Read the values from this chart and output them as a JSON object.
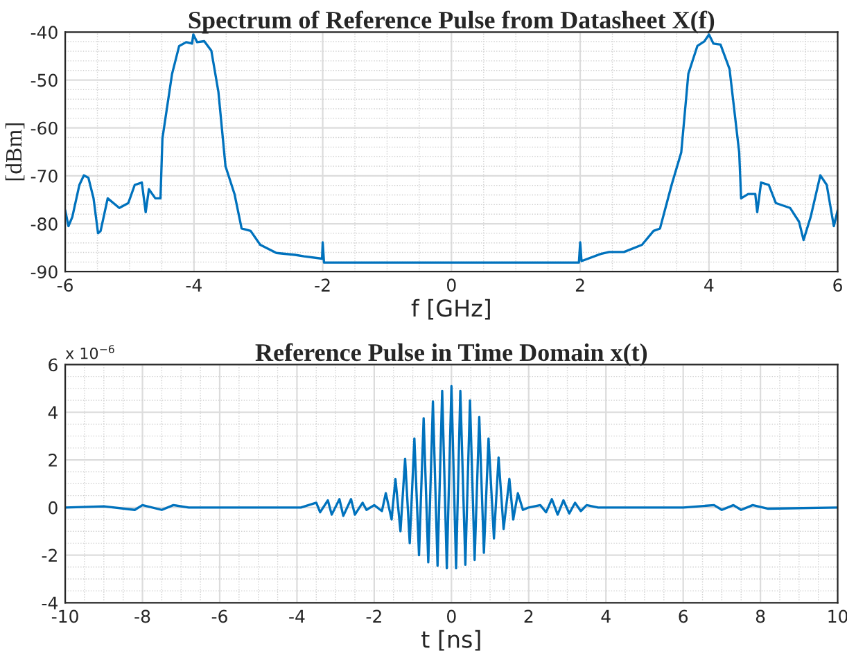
{
  "chart_data": [
    {
      "type": "line",
      "title": "Spectrum of Reference Pulse from Datasheet X(f)",
      "xlabel": "f [GHz]",
      "ylabel": "[dBm]",
      "xlim": [
        -6,
        6
      ],
      "xticks": [
        -6,
        -4,
        -2,
        0,
        2,
        4,
        6
      ],
      "ylim": [
        -90,
        -40
      ],
      "yticks": [
        -90,
        -80,
        -70,
        -60,
        -50,
        -40
      ],
      "grid": true,
      "series": [
        {
          "color": "#0072bd",
          "x": [
            -6,
            -5.95,
            -5.89,
            -5.78,
            -5.71,
            -5.64,
            -5.56,
            -5.49,
            -5.45,
            -5.34,
            -5.16,
            -5.02,
            -4.92,
            -4.81,
            -4.75,
            -4.7,
            -4.6,
            -4.52,
            -4.49,
            -4.34,
            -4.23,
            -4.12,
            -4.03,
            -4.01,
            -3.95,
            -3.84,
            -3.73,
            -3.62,
            -3.51,
            -3.37,
            -3.26,
            -3.12,
            -2.97,
            -2.72,
            -2.43,
            -2.29,
            -2.01,
            -2.0,
            -1.98,
            0,
            1.98,
            2.0,
            2.02,
            2.32,
            2.45,
            2.68,
            2.96,
            3.14,
            3.24,
            3.42,
            3.57,
            3.68,
            3.82,
            3.93,
            4.0,
            4.07,
            4.18,
            4.32,
            4.47,
            4.5,
            4.61,
            4.72,
            4.75,
            4.81,
            4.93,
            5.04,
            5.26,
            5.4,
            5.47,
            5.58,
            5.73,
            5.83,
            5.94,
            6.0
          ],
          "values": [
            -77.2,
            -80.5,
            -78.6,
            -71.9,
            -69.9,
            -70.4,
            -74.7,
            -82,
            -81.5,
            -74.7,
            -76.7,
            -75.7,
            -71.9,
            -71.4,
            -77.6,
            -72.8,
            -74.7,
            -74.7,
            -62.2,
            -48.7,
            -42.9,
            -42.1,
            -42.4,
            -40.5,
            -42.1,
            -41.9,
            -43.9,
            -52.5,
            -68,
            -73.8,
            -81,
            -81.5,
            -84.4,
            -86.1,
            -86.5,
            -86.8,
            -87.3,
            -83.9,
            -88.1,
            -88.1,
            -88.1,
            -83.9,
            -87.8,
            -86.3,
            -85.9,
            -85.9,
            -84.4,
            -81.5,
            -81,
            -71.9,
            -65.1,
            -48.7,
            -42.9,
            -41.9,
            -40.5,
            -42.4,
            -42.6,
            -47.7,
            -65.1,
            -74.7,
            -73.8,
            -73.8,
            -77.6,
            -71.4,
            -71.9,
            -75.7,
            -76.7,
            -79.6,
            -83.4,
            -78.6,
            -69.9,
            -71.9,
            -80.5,
            -77.2
          ]
        }
      ]
    },
    {
      "type": "line",
      "title": "Reference Pulse in Time Domain x(t)",
      "xlabel": "t [ns]",
      "xlim": [
        -10,
        10
      ],
      "xticks": [
        -10,
        -8,
        -6,
        -4,
        -2,
        0,
        2,
        4,
        6,
        8,
        10
      ],
      "ylim": [
        -4,
        6
      ],
      "yticks": [
        -4,
        -2,
        0,
        2,
        4,
        6
      ],
      "grid": true,
      "annotations": [
        "x 10$^{−6}$"
      ],
      "series": [
        {
          "color": "#0072bd",
          "x": [
            -10,
            -9,
            -8.2,
            -8,
            -7.5,
            -7.2,
            -6.8,
            -4,
            -3.9,
            -3.5,
            -3.4,
            -3.2,
            -3.1,
            -2.9,
            -2.8,
            -2.6,
            -2.5,
            -2.3,
            -2.2,
            -2.0,
            -1.8,
            -1.7,
            -1.55,
            -1.45,
            -1.32,
            -1.2,
            -1.08,
            -0.96,
            -0.84,
            -0.72,
            -0.6,
            -0.48,
            -0.36,
            -0.24,
            -0.12,
            0,
            0.12,
            0.23,
            0.36,
            0.48,
            0.6,
            0.72,
            0.84,
            0.96,
            1.1,
            1.22,
            1.35,
            1.5,
            1.6,
            1.72,
            1.85,
            2.0,
            2.3,
            2.45,
            2.6,
            2.75,
            2.9,
            3.05,
            3.2,
            3.35,
            3.5,
            3.8,
            6,
            6.8,
            7.0,
            7.3,
            7.5,
            7.8,
            8.2,
            10
          ],
          "values": [
            0,
            0.05,
            -0.1,
            0.1,
            -0.1,
            0.1,
            0,
            0,
            0,
            0.2,
            -0.2,
            0.3,
            -0.3,
            0.35,
            -0.35,
            0.35,
            -0.3,
            0.2,
            -0.1,
            0.1,
            -0.15,
            0.6,
            -0.5,
            1.2,
            -1.0,
            2.05,
            -1.5,
            2.9,
            -2.0,
            3.75,
            -2.3,
            4.45,
            -2.45,
            4.9,
            -2.55,
            5.1,
            -2.55,
            4.9,
            -2.4,
            4.5,
            -2.2,
            3.8,
            -1.9,
            2.9,
            -1.3,
            2.1,
            -0.9,
            1.2,
            -0.5,
            0.6,
            -0.1,
            0,
            0.1,
            -0.2,
            0.35,
            -0.3,
            0.3,
            -0.25,
            0.2,
            -0.15,
            0.1,
            0,
            0,
            0.1,
            -0.1,
            0.1,
            -0.1,
            0.1,
            -0.05,
            0
          ]
        }
      ]
    }
  ]
}
